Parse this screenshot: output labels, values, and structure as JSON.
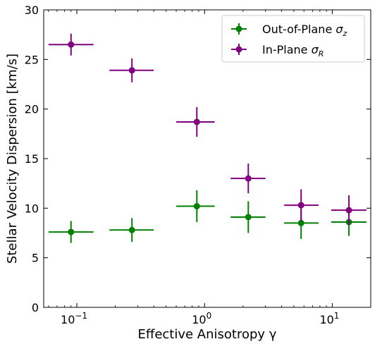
{
  "chart_data": {
    "type": "scatter",
    "xlabel": "Effective Anisotropy γ",
    "ylabel": "Stellar Velocity Dispersion [km/s]",
    "xscale": "log",
    "xlim": [
      0.055,
      20
    ],
    "ylim": [
      0,
      30
    ],
    "yticks": [
      0,
      5,
      10,
      15,
      20,
      25,
      30
    ],
    "xticks": [
      0.1,
      1,
      10
    ],
    "xtick_labels": [
      {
        "base": "10",
        "exp": "−1"
      },
      {
        "base": "10",
        "exp": "0"
      },
      {
        "base": "10",
        "exp": "1"
      }
    ],
    "legend_position": "top-right",
    "series": [
      {
        "name": "Out-of-Plane σ_z",
        "name_main": "Out-of-Plane ",
        "name_sym": "σ",
        "name_sub": "z",
        "color": "#008000",
        "points": [
          {
            "x": 0.09,
            "y": 7.6,
            "xlo": 0.06,
            "xhi": 0.135,
            "yerr": 1.1
          },
          {
            "x": 0.27,
            "y": 7.8,
            "xlo": 0.18,
            "xhi": 0.4,
            "yerr": 1.2
          },
          {
            "x": 0.87,
            "y": 10.2,
            "xlo": 0.6,
            "xhi": 1.2,
            "yerr": 1.6
          },
          {
            "x": 2.2,
            "y": 9.1,
            "xlo": 1.6,
            "xhi": 3.0,
            "yerr": 1.6
          },
          {
            "x": 5.7,
            "y": 8.5,
            "xlo": 4.2,
            "xhi": 7.8,
            "yerr": 1.6
          },
          {
            "x": 13.5,
            "y": 8.6,
            "xlo": 9.8,
            "xhi": 18.5,
            "yerr": 1.4
          }
        ]
      },
      {
        "name": "In-Plane σ_R",
        "name_main": "In-Plane ",
        "name_sym": "σ",
        "name_sub": "R",
        "color": "#800080",
        "points": [
          {
            "x": 0.09,
            "y": 26.5,
            "xlo": 0.06,
            "xhi": 0.135,
            "yerr": 1.1
          },
          {
            "x": 0.27,
            "y": 23.9,
            "xlo": 0.18,
            "xhi": 0.4,
            "yerr": 1.2
          },
          {
            "x": 0.87,
            "y": 18.7,
            "xlo": 0.6,
            "xhi": 1.2,
            "yerr": 1.5
          },
          {
            "x": 2.2,
            "y": 13.0,
            "xlo": 1.6,
            "xhi": 3.0,
            "yerr": 1.5
          },
          {
            "x": 5.7,
            "y": 10.3,
            "xlo": 4.2,
            "xhi": 7.8,
            "yerr": 1.6
          },
          {
            "x": 13.5,
            "y": 9.8,
            "xlo": 9.8,
            "xhi": 18.5,
            "yerr": 1.5
          }
        ]
      }
    ]
  }
}
